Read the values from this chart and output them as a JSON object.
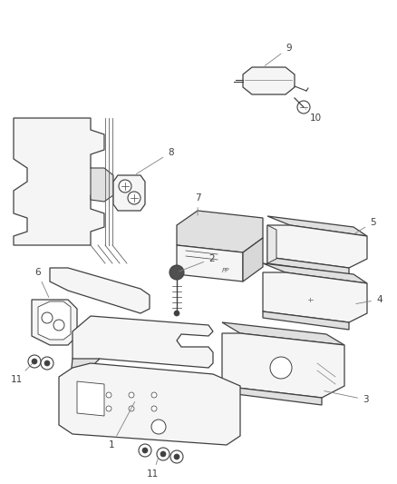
{
  "background_color": "#ffffff",
  "line_color": "#404040",
  "label_color": "#404040",
  "figsize": [
    4.38,
    5.33
  ],
  "dpi": 100,
  "parts_fill": "#f5f5f5",
  "shadow_fill": "#e0e0e0",
  "font_size": 7.5
}
